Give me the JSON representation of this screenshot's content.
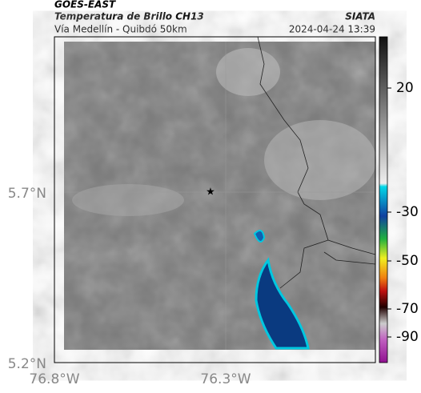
{
  "header": {
    "source": "GOES-EAST",
    "product": "Temperatura de Brillo CH13",
    "region": "Vía Medellín - Quibdó 50km",
    "org": "SIATA",
    "datetime": "2024-04-24 13:39"
  },
  "map": {
    "lat_labels": [
      "5.7°N",
      "5.2°N"
    ],
    "lon_labels": [
      "76.8°W",
      "76.3°W"
    ]
  },
  "colorbar": {
    "ticks": [
      20,
      -30,
      -50,
      -70,
      -90
    ]
  }
}
